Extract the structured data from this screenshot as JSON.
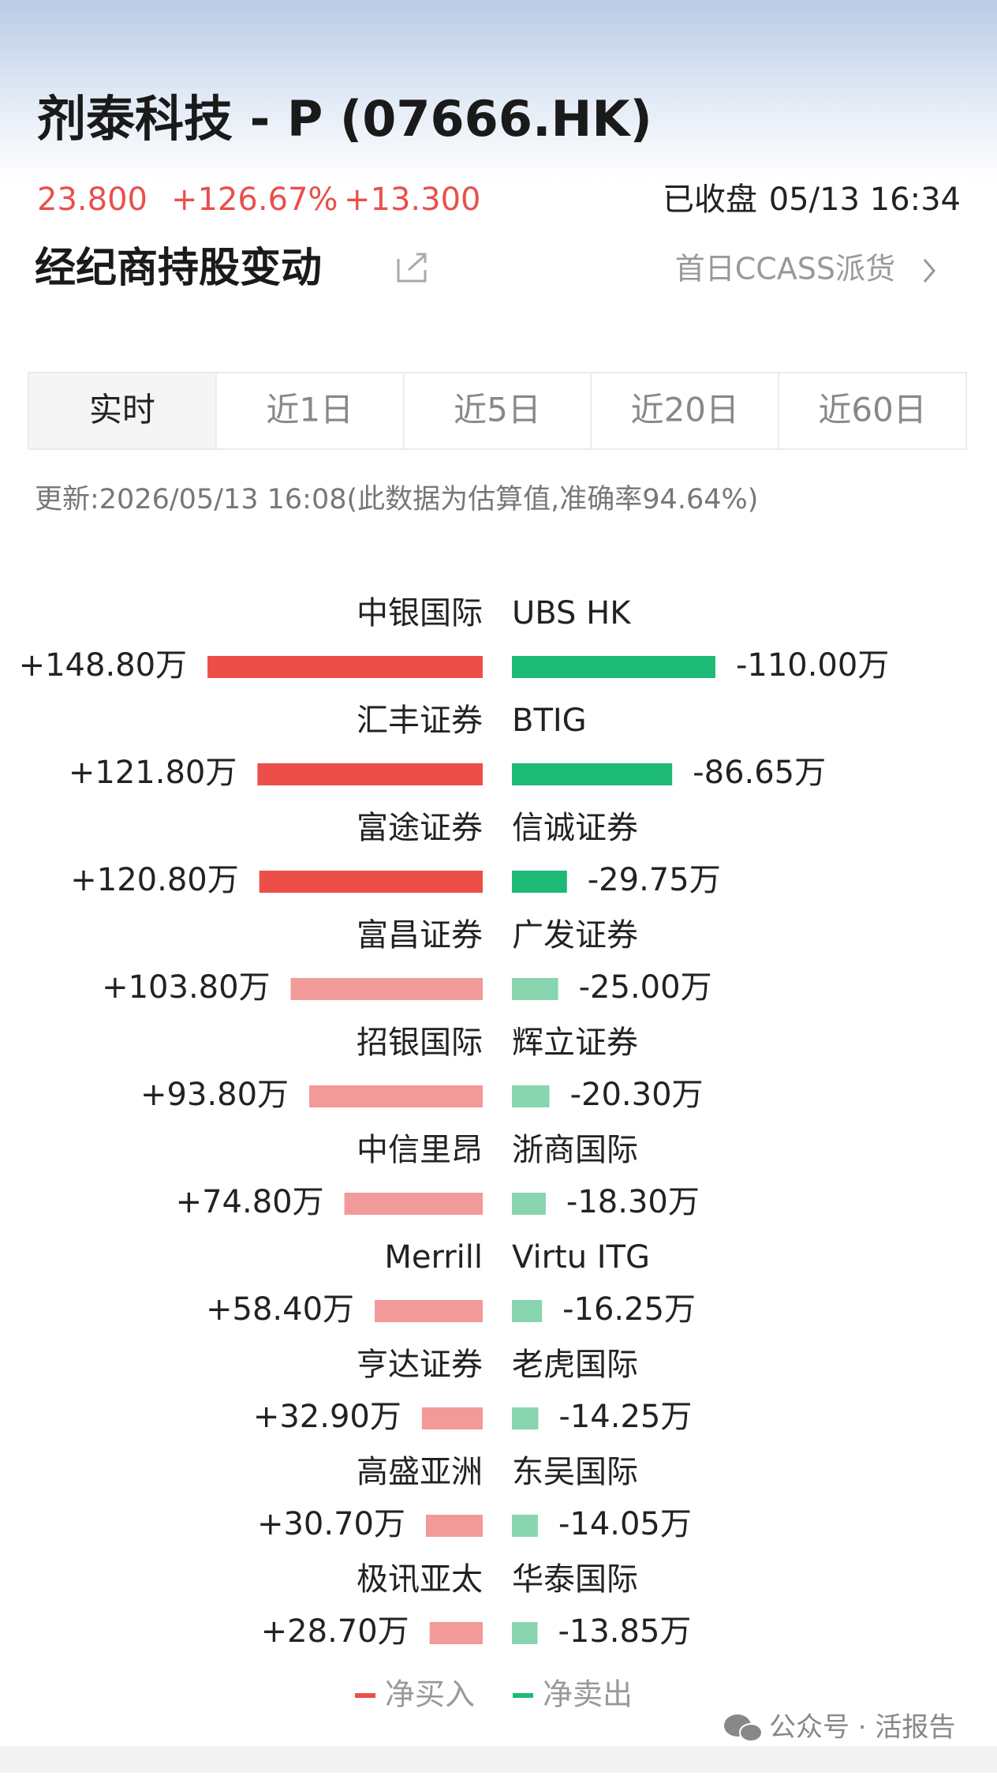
{
  "header": {
    "title": "剂泰科技 - P (07666.HK)",
    "price": "23.800",
    "change_pct": "+126.67%",
    "change": "+13.300",
    "status": "已收盘",
    "time": "05/13 16:34"
  },
  "section": {
    "title": "经纪商持股变动",
    "link": "首日CCASS派货"
  },
  "tabs": {
    "items": [
      "实时",
      "近1日",
      "近5日",
      "近20日",
      "近60日"
    ],
    "active": 0
  },
  "update_note": "更新:2026/05/13 16:08(此数据为估算值,准确率94.64%)",
  "chart_data": {
    "type": "diverging-bar",
    "highlight_count": 3,
    "series": [
      {
        "name": "净买入",
        "color": "#ec4f4a",
        "light_color": "#f29a99",
        "categories": [
          "中银国际",
          "汇丰证券",
          "富途证券",
          "富昌证券",
          "招银国际",
          "中信里昂",
          "Merrill",
          "亨达证券",
          "高盛亚洲",
          "极讯亚太"
        ],
        "values": [
          148.8,
          121.8,
          120.8,
          103.8,
          93.8,
          74.8,
          58.4,
          32.9,
          30.7,
          28.7
        ],
        "value_labels": [
          "+148.80万",
          "+121.80万",
          "+120.80万",
          "+103.80万",
          "+93.80万",
          "+74.80万",
          "+58.40万",
          "+32.90万",
          "+30.70万",
          "+28.70万"
        ]
      },
      {
        "name": "净卖出",
        "color": "#1dba76",
        "light_color": "#88d5b0",
        "categories": [
          "UBS HK",
          "BTIG",
          "信诚证券",
          "广发证券",
          "辉立证券",
          "浙商国际",
          "Virtu ITG",
          "老虎国际",
          "东吴国际",
          "华泰国际"
        ],
        "values": [
          -110,
          -86.65,
          -29.75,
          -25,
          -20.3,
          -18.3,
          -16.25,
          -14.25,
          -14.05,
          -13.85
        ],
        "value_labels": [
          "-110.00万",
          "-86.65万",
          "-29.75万",
          "-25.00万",
          "-20.30万",
          "-18.30万",
          "-16.25万",
          "-14.25万",
          "-14.05万",
          "-13.85万"
        ]
      }
    ]
  },
  "watermark": "公众号 · 活报告"
}
